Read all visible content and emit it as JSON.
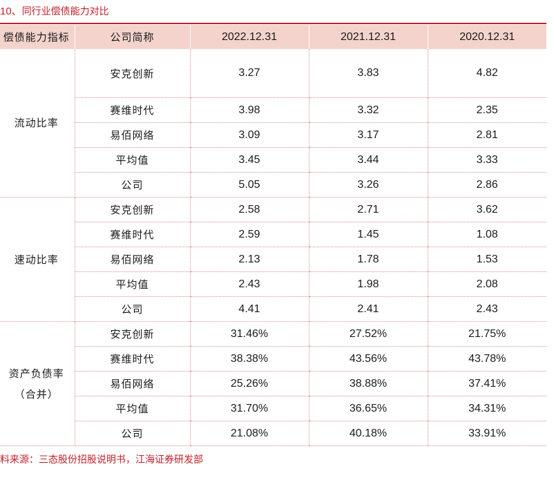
{
  "caption": {
    "number": "10、",
    "title": "同行业偿债能力对比"
  },
  "table": {
    "headers": [
      "偿债能力指标",
      "公司简称",
      "2022.12.31",
      "2021.12.31",
      "2020.12.31"
    ],
    "groups": [
      {
        "metric": "流动比率",
        "metric_line2": "",
        "rows": [
          {
            "company": "安克创新",
            "values": [
              "3.27",
              "3.83",
              "4.82"
            ]
          },
          {
            "company": "赛维时代",
            "values": [
              "3.98",
              "3.32",
              "2.35"
            ]
          },
          {
            "company": "易佰网络",
            "values": [
              "3.09",
              "3.17",
              "2.81"
            ]
          },
          {
            "company": "平均值",
            "values": [
              "3.45",
              "3.44",
              "3.33"
            ]
          },
          {
            "company": "公司",
            "values": [
              "5.05",
              "3.26",
              "2.86"
            ]
          }
        ]
      },
      {
        "metric": "速动比率",
        "metric_line2": "",
        "rows": [
          {
            "company": "安克创新",
            "values": [
              "2.58",
              "2.71",
              "3.62"
            ]
          },
          {
            "company": "赛维时代",
            "values": [
              "2.59",
              "1.45",
              "1.08"
            ]
          },
          {
            "company": "易佰网络",
            "values": [
              "2.13",
              "1.78",
              "1.53"
            ]
          },
          {
            "company": "平均值",
            "values": [
              "2.43",
              "1.98",
              "2.08"
            ]
          },
          {
            "company": "公司",
            "values": [
              "4.41",
              "2.41",
              "2.43"
            ]
          }
        ]
      },
      {
        "metric": "资产负债率",
        "metric_line2": "（合并）",
        "rows": [
          {
            "company": "安克创新",
            "values": [
              "31.46%",
              "27.52%",
              "21.75%"
            ]
          },
          {
            "company": "赛维时代",
            "values": [
              "38.38%",
              "43.56%",
              "43.78%"
            ]
          },
          {
            "company": "易佰网络",
            "values": [
              "25.26%",
              "38.88%",
              "37.41%"
            ]
          },
          {
            "company": "平均值",
            "values": [
              "31.70%",
              "36.65%",
              "34.31%"
            ]
          },
          {
            "company": "公司",
            "values": [
              "21.08%",
              "40.18%",
              "33.91%"
            ]
          }
        ]
      }
    ]
  },
  "source": "料来源：三态股份招股说明书，江海证券研发部",
  "colors": {
    "accent": "#c0202a",
    "header_bg": "#f4d3cd",
    "grid": "#d98c8c"
  }
}
